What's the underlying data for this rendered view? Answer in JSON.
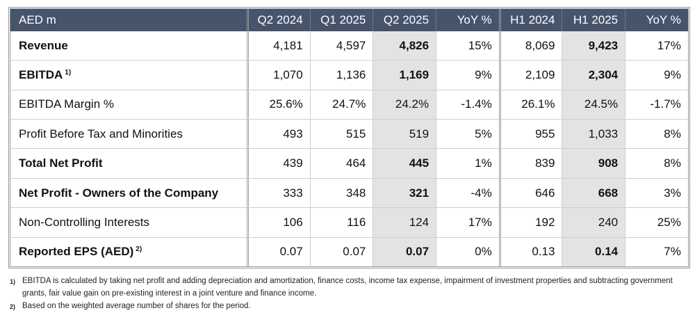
{
  "table": {
    "header": [
      "AED m",
      "Q2 2024",
      "Q1 2025",
      "Q2 2025",
      "YoY %",
      "H1 2024",
      "H1 2025",
      "YoY %"
    ],
    "rows": [
      {
        "label": "Revenue",
        "note": "",
        "bold": true,
        "values": [
          "4,181",
          "4,597",
          "4,826",
          "15%",
          "8,069",
          "9,423",
          "17%"
        ]
      },
      {
        "label": "EBITDA",
        "note": "1)",
        "bold": true,
        "values": [
          "1,070",
          "1,136",
          "1,169",
          "9%",
          "2,109",
          "2,304",
          "9%"
        ]
      },
      {
        "label": "EBITDA Margin %",
        "note": "",
        "bold": false,
        "values": [
          "25.6%",
          "24.7%",
          "24.2%",
          "-1.4%",
          "26.1%",
          "24.5%",
          "-1.7%"
        ]
      },
      {
        "label": "Profit Before Tax and Minorities",
        "note": "",
        "bold": false,
        "values": [
          "493",
          "515",
          "519",
          "5%",
          "955",
          "1,033",
          "8%"
        ]
      },
      {
        "label": "Total Net Profit",
        "note": "",
        "bold": true,
        "values": [
          "439",
          "464",
          "445",
          "1%",
          "839",
          "908",
          "8%"
        ]
      },
      {
        "label": "Net Profit - Owners of the Company",
        "note": "",
        "bold": true,
        "values": [
          "333",
          "348",
          "321",
          "-4%",
          "646",
          "668",
          "3%"
        ]
      },
      {
        "label": "Non-Controlling Interests",
        "note": "",
        "bold": false,
        "values": [
          "106",
          "116",
          "124",
          "17%",
          "192",
          "240",
          "25%"
        ]
      },
      {
        "label": "Reported EPS (AED)",
        "note": "2)",
        "bold": true,
        "values": [
          "0.07",
          "0.07",
          "0.07",
          "0%",
          "0.13",
          "0.14",
          "7%"
        ]
      }
    ]
  },
  "footnotes": [
    {
      "mark": "1)",
      "text": "EBITDA is calculated by taking net profit and adding depreciation and amortization, finance costs, income tax expense, impairment of investment properties and subtracting government grants, fair value gain on pre-existing interest in a joint venture and finance income."
    },
    {
      "mark": "2)",
      "text": "Based on the weighted average number of shares for the period."
    }
  ]
}
